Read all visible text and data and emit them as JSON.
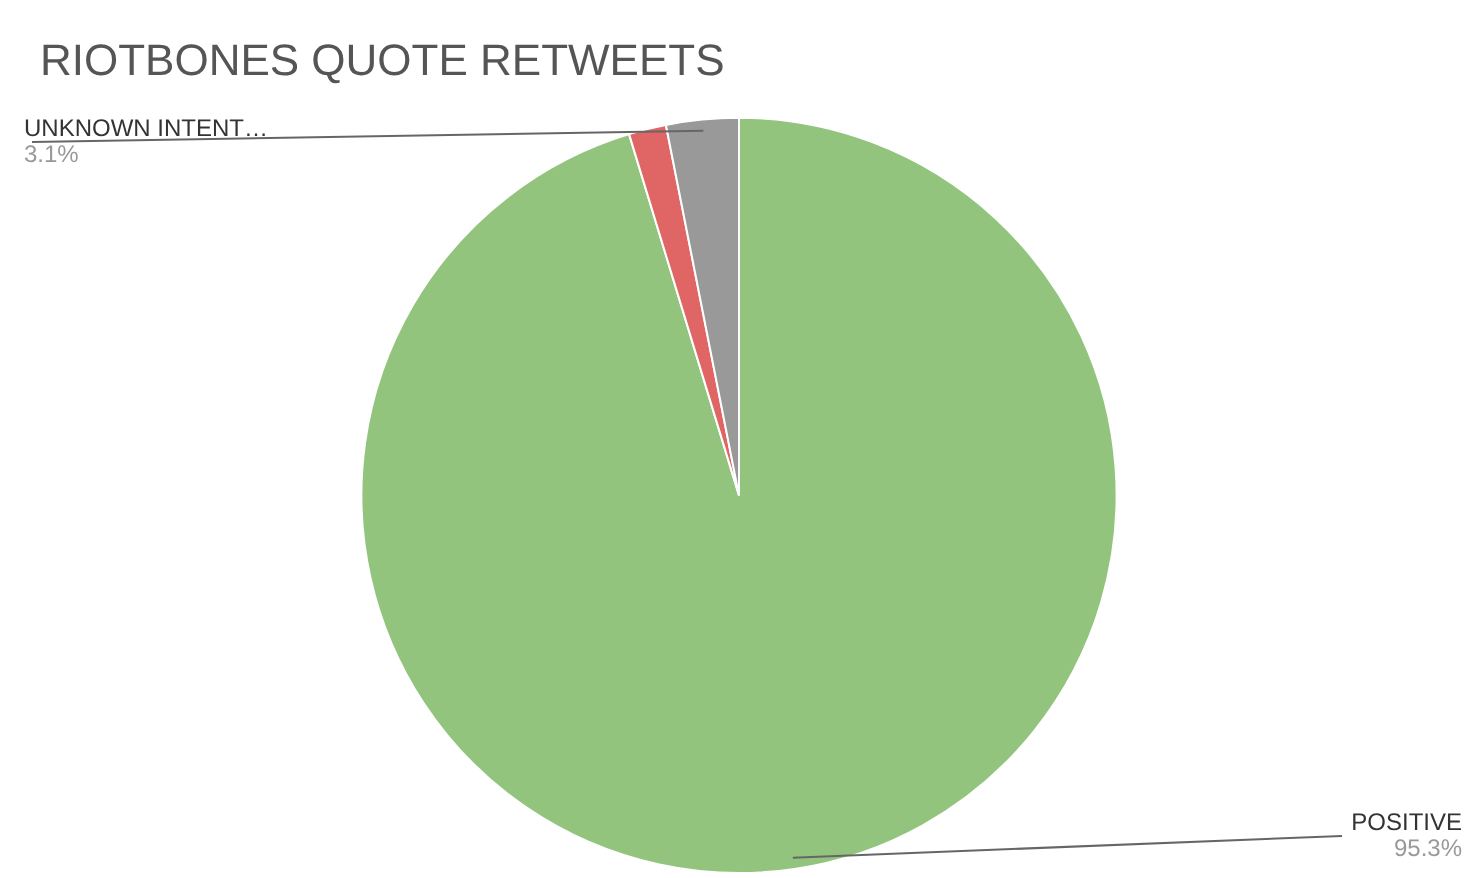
{
  "chart_data": {
    "type": "pie",
    "title": "RIOTBONES QUOTE RETWEETS",
    "categories": [
      "POSITIVE",
      null,
      "UNKNOWN INTENT…"
    ],
    "values": [
      95.3,
      1.6,
      3.1
    ],
    "colors": [
      "#93c47d",
      "#e06666",
      "#999999"
    ],
    "value_labels": [
      "95.3%",
      null,
      "3.1%"
    ],
    "legend": false
  }
}
